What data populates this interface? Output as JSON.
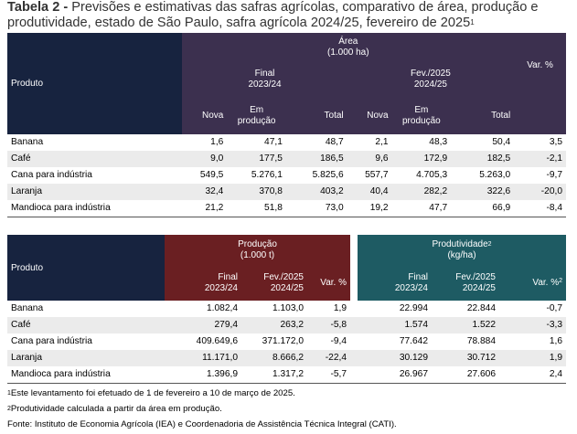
{
  "title": {
    "label": "Tabela 2 -",
    "text": "Previsões e estimativas das safras agrícolas, comparativo de área, produção e produtividade, estado de São Paulo, safra agrícola 2024/25, fevereiro de 2025",
    "sup": "1"
  },
  "table1": {
    "product_header": "Produto",
    "area_header_line1": "Área",
    "area_header_line2": "(1.000 ha)",
    "period1_line1": "Final",
    "period1_line2": "2023/24",
    "period2_line1": "Fev./2025",
    "period2_line2": "2024/25",
    "var_header": "Var. %",
    "sub_nova": "Nova",
    "sub_emprod_line1": "Em",
    "sub_emprod_line2": "produção",
    "sub_total": "Total",
    "rows": [
      {
        "product": "Banana",
        "n1": "1,6",
        "e1": "47,1",
        "t1": "48,7",
        "n2": "2,1",
        "e2": "48,3",
        "t2": "50,4",
        "var": "3,5"
      },
      {
        "product": "Café",
        "n1": "9,0",
        "e1": "177,5",
        "t1": "186,5",
        "n2": "9,6",
        "e2": "172,9",
        "t2": "182,5",
        "var": "-2,1"
      },
      {
        "product": "Cana para indústria",
        "n1": "549,5",
        "e1": "5.276,1",
        "t1": "5.825,6",
        "n2": "557,7",
        "e2": "4.705,3",
        "t2": "5.263,0",
        "var": "-9,7"
      },
      {
        "product": "Laranja",
        "n1": "32,4",
        "e1": "370,8",
        "t1": "403,2",
        "n2": "40,4",
        "e2": "282,2",
        "t2": "322,6",
        "var": "-20,0"
      },
      {
        "product": "Mandioca para indústria",
        "n1": "21,2",
        "e1": "51,8",
        "t1": "73,0",
        "n2": "19,2",
        "e2": "47,7",
        "t2": "66,9",
        "var": "-8,4"
      }
    ]
  },
  "table2": {
    "product_header": "Produto",
    "prod_header_line1": "Produção",
    "prod_header_line2": "(1.000 t)",
    "prodv_header_line1": "Produtividade",
    "prodv_header_sup": "2",
    "prodv_header_line2": "(kg/ha)",
    "final_line1": "Final",
    "final_line2": "2023/24",
    "fev_line1": "Fev./2025",
    "fev_line2": "2024/25",
    "var_header": "Var. %",
    "var_header_sup": "Var. %",
    "var_sup_mark": "2",
    "rows": [
      {
        "product": "Banana",
        "pf": "1.082,4",
        "pv": "1.103,0",
        "pvar": "1,9",
        "kf": "22.994",
        "kv": "22.844",
        "kvar": "-0,7"
      },
      {
        "product": "Café",
        "pf": "279,4",
        "pv": "263,2",
        "pvar": "-5,8",
        "kf": "1.574",
        "kv": "1.522",
        "kvar": "-3,3"
      },
      {
        "product": "Cana para indústria",
        "pf": "409.649,6",
        "pv": "371.172,0",
        "pvar": "-9,4",
        "kf": "77.642",
        "kv": "78.884",
        "kvar": "1,6"
      },
      {
        "product": "Laranja",
        "pf": "11.171,0",
        "pv": "8.666,2",
        "pvar": "-22,4",
        "kf": "30.129",
        "kv": "30.712",
        "kvar": "1,9"
      },
      {
        "product": "Mandioca para indústria",
        "pf": "1.396,9",
        "pv": "1.317,2",
        "pvar": "-5,7",
        "kf": "26.967",
        "kv": "27.606",
        "kvar": "2,4"
      }
    ]
  },
  "notes": {
    "n1_mark": "1",
    "n1": "Este levantamento foi efetuado de 1 de fevereiro a 10 de março de 2025.",
    "n2_mark": "2",
    "n2": "Produtividade calculada a partir da área em produção.",
    "source": "Fonte: Instituto de Economia Agrícola (IEA) e Coordenadoria de Assistência Técnica Integral (CATI)."
  },
  "colors": {
    "navy": "#17233f",
    "purple": "#3c304f",
    "red": "#6a1f22",
    "teal": "#1e5b63",
    "row_alt": "#ebebeb"
  }
}
